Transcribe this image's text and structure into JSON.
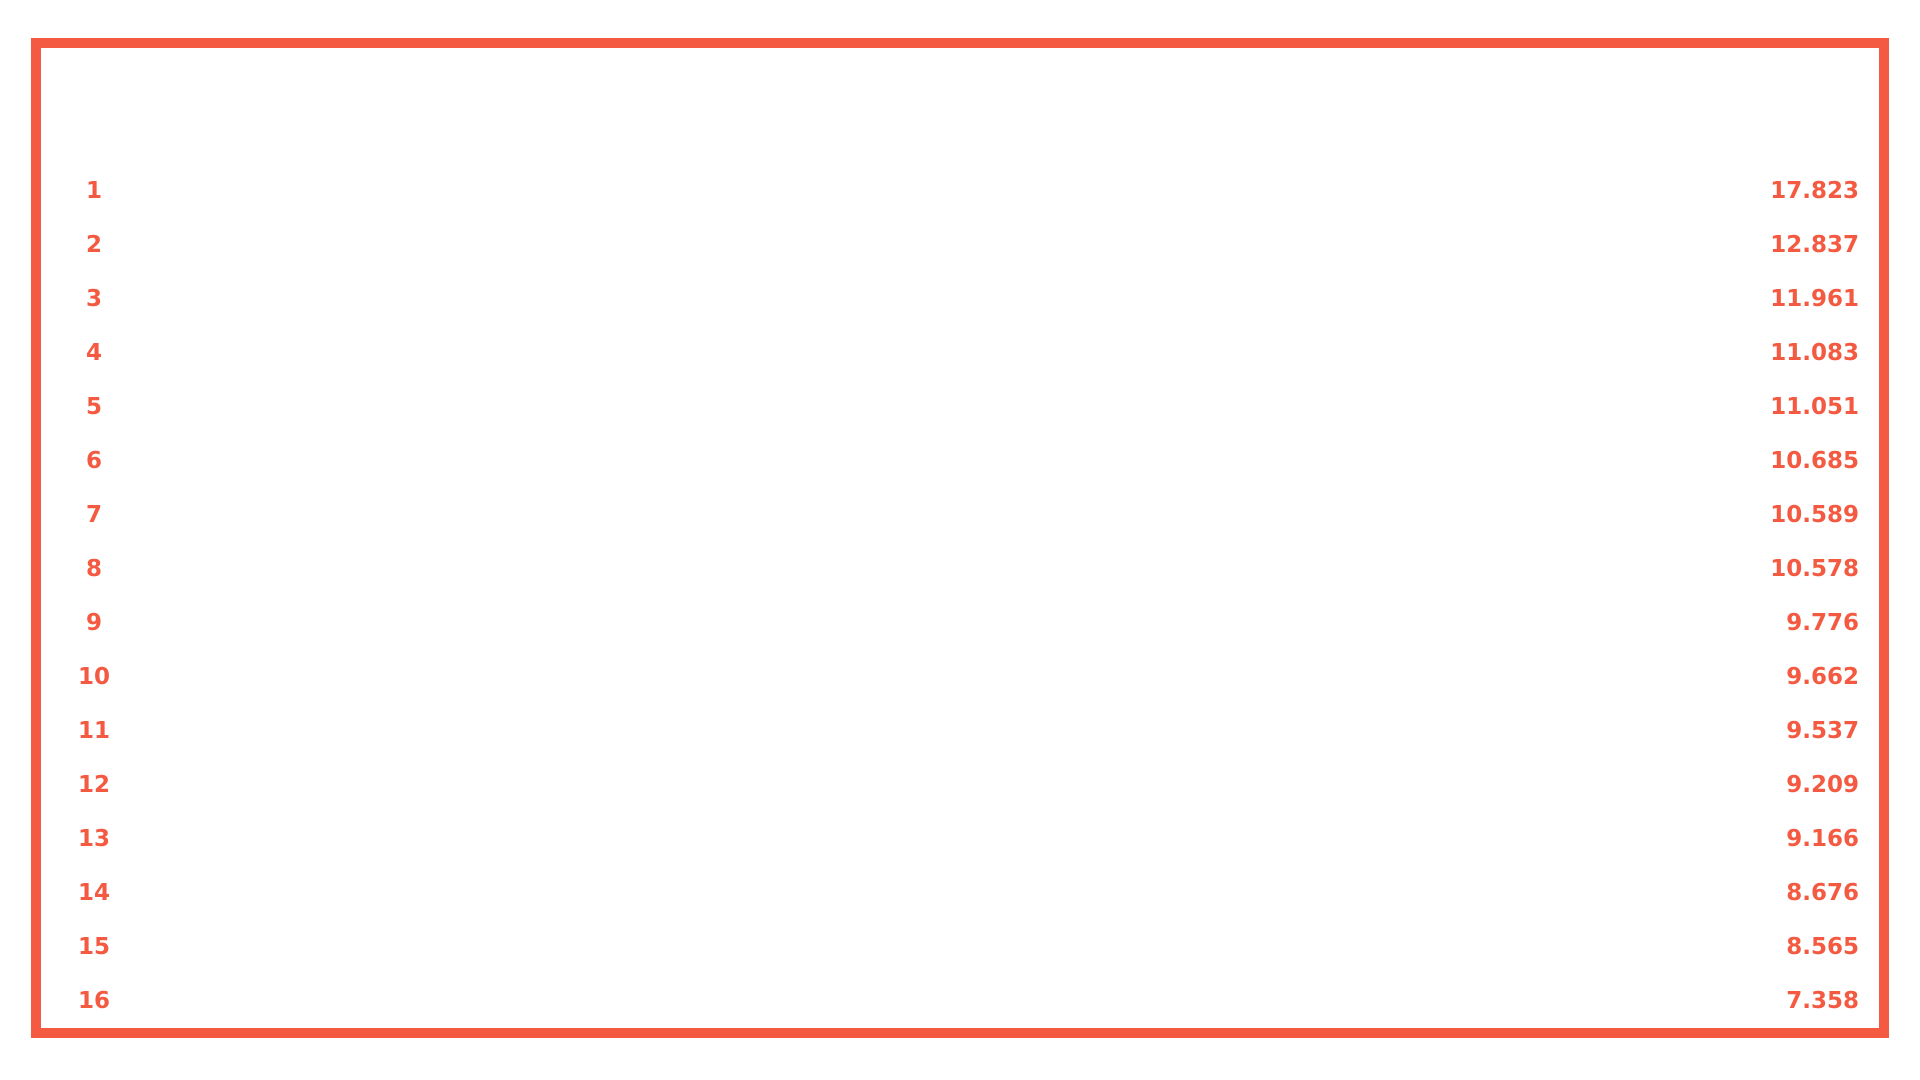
{
  "colors": {
    "accent": "#f45a41",
    "background": "#ffffff"
  },
  "rows": [
    {
      "rank": "1",
      "value": "17.823"
    },
    {
      "rank": "2",
      "value": "12.837"
    },
    {
      "rank": "3",
      "value": "11.961"
    },
    {
      "rank": "4",
      "value": "11.083"
    },
    {
      "rank": "5",
      "value": "11.051"
    },
    {
      "rank": "6",
      "value": "10.685"
    },
    {
      "rank": "7",
      "value": "10.589"
    },
    {
      "rank": "8",
      "value": "10.578"
    },
    {
      "rank": "9",
      "value": "9.776"
    },
    {
      "rank": "10",
      "value": "9.662"
    },
    {
      "rank": "11",
      "value": "9.537"
    },
    {
      "rank": "12",
      "value": "9.209"
    },
    {
      "rank": "13",
      "value": "9.166"
    },
    {
      "rank": "14",
      "value": "8.676"
    },
    {
      "rank": "15",
      "value": "8.565"
    },
    {
      "rank": "16",
      "value": "7.358"
    }
  ]
}
